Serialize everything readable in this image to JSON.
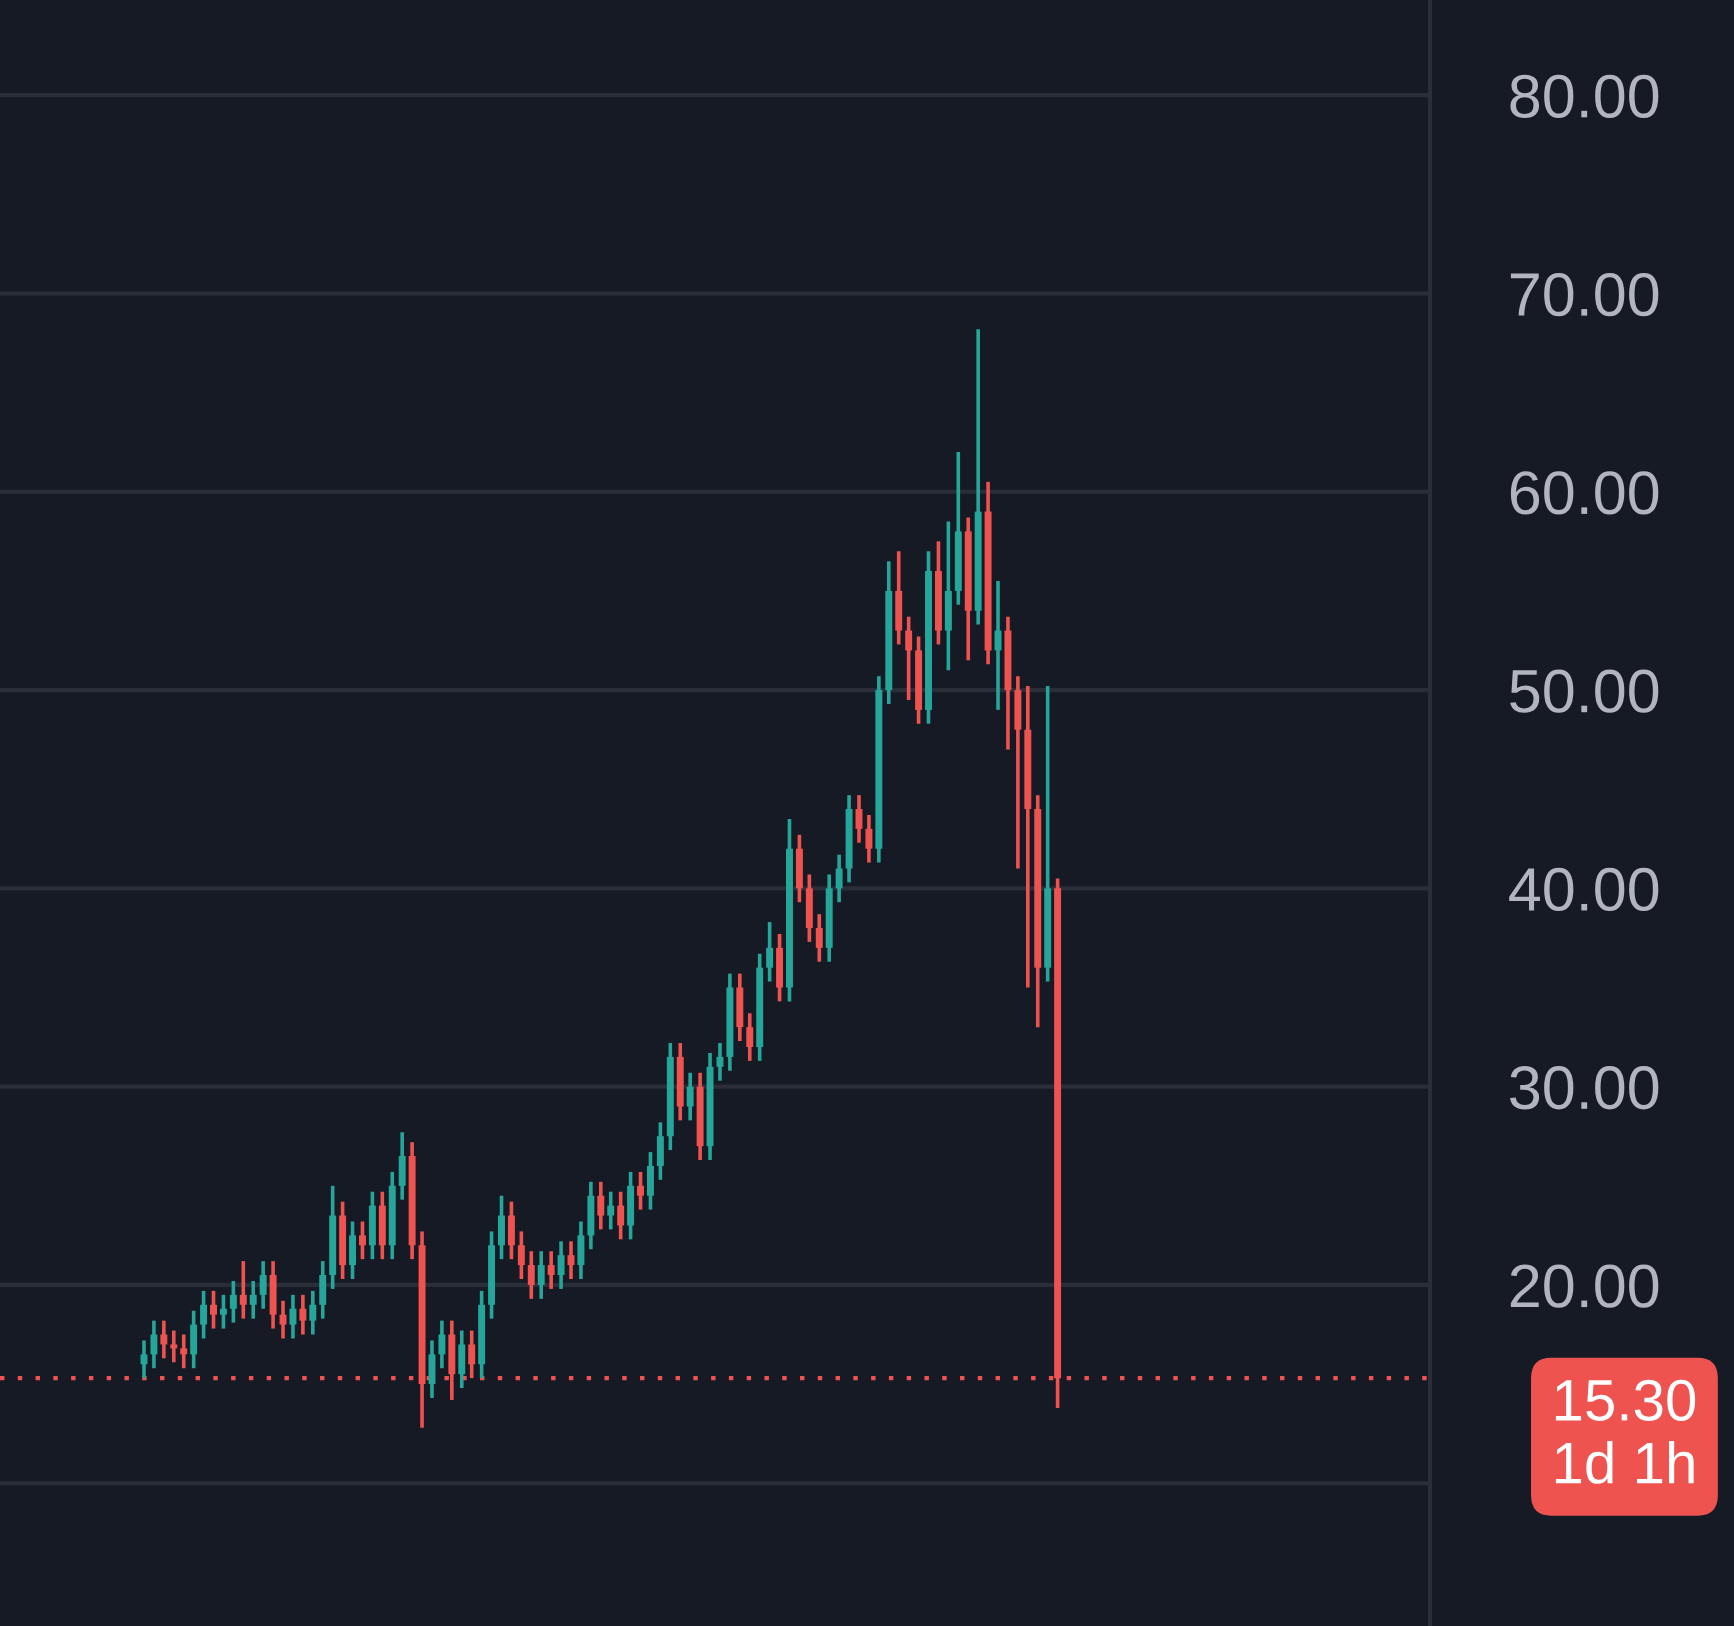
{
  "chart_data": {
    "type": "candlestick",
    "categories": [
      null,
      null,
      null,
      null,
      null,
      null,
      null,
      null,
      null,
      null,
      null,
      null,
      null,
      null,
      null,
      null,
      null,
      null,
      null,
      null,
      null,
      null,
      null,
      null,
      null,
      null,
      null,
      null,
      null,
      null,
      null,
      null,
      null,
      null,
      null,
      null,
      null,
      null,
      null,
      null,
      null,
      null,
      null,
      null,
      null,
      null,
      null,
      null,
      null,
      null,
      null,
      null,
      null,
      null,
      null,
      null,
      null,
      null,
      null,
      null,
      null,
      null,
      null,
      null,
      null,
      null,
      null,
      null,
      null,
      null,
      null,
      null,
      null,
      null,
      null,
      null,
      null,
      null,
      null,
      null,
      null,
      null,
      null,
      null,
      null,
      null,
      null,
      null,
      null,
      null,
      null,
      null,
      null,
      null,
      null,
      null,
      null,
      null,
      null,
      null,
      null,
      null,
      null,
      null,
      null,
      null,
      null,
      null,
      null,
      null,
      null,
      null,
      null,
      null,
      null,
      null,
      null,
      null,
      null,
      null,
      null,
      null,
      null,
      null,
      null,
      null,
      null,
      null,
      null,
      null,
      null,
      null,
      null,
      null,
      null,
      null,
      null,
      null,
      null,
      null,
      null,
      null,
      null,
      null
    ],
    "ohlc": [
      null,
      null,
      null,
      null,
      null,
      null,
      null,
      null,
      null,
      null,
      null,
      null,
      null,
      null,
      [
        16,
        17.2,
        15.3,
        16.5
      ],
      [
        16.5,
        18.2,
        15.8,
        17.5
      ],
      [
        17.5,
        18.2,
        16.3,
        17
      ],
      [
        17,
        17.7,
        16.1,
        16.8
      ],
      [
        16.8,
        17.5,
        15.8,
        16.5
      ],
      [
        16.5,
        18.7,
        15.8,
        18
      ],
      [
        18,
        19.7,
        17.3,
        19
      ],
      [
        19,
        19.7,
        17.8,
        18.5
      ],
      [
        18.5,
        19.5,
        17.8,
        18.8
      ],
      [
        18.8,
        20.2,
        18.1,
        19.5
      ],
      [
        19.5,
        21.2,
        18.3,
        19
      ],
      [
        19,
        20.2,
        18.3,
        19.5
      ],
      [
        19.5,
        21.2,
        18.8,
        20.5
      ],
      [
        20.5,
        21.2,
        17.8,
        18.5
      ],
      [
        18.5,
        19.2,
        17.3,
        18
      ],
      [
        18,
        19.5,
        17.3,
        18.8
      ],
      [
        18.8,
        19.5,
        17.5,
        18.2
      ],
      [
        18.2,
        19.7,
        17.5,
        19
      ],
      [
        19,
        21.2,
        18.3,
        20.5
      ],
      [
        20.5,
        25,
        19.8,
        23.5
      ],
      [
        23.5,
        24.2,
        20.3,
        21
      ],
      [
        21,
        23.2,
        20.3,
        22.5
      ],
      [
        22.5,
        23.2,
        21.3,
        22
      ],
      [
        22,
        24.7,
        21.3,
        24
      ],
      [
        24,
        24.7,
        21.3,
        22
      ],
      [
        22,
        25.7,
        21.3,
        25
      ],
      [
        25,
        27.7,
        24.3,
        26.5
      ],
      [
        26.5,
        27.2,
        21.3,
        22
      ],
      [
        22,
        22.7,
        12.8,
        15
      ],
      [
        15,
        17.2,
        14.3,
        16.5
      ],
      [
        16.5,
        18.2,
        15.8,
        17.5
      ],
      [
        17.5,
        18.2,
        14.2,
        15.5
      ],
      [
        15.5,
        17.7,
        14.8,
        17
      ],
      [
        17,
        17.7,
        15.3,
        16
      ],
      [
        16,
        19.7,
        15.3,
        19
      ],
      [
        19,
        22.7,
        18.3,
        22
      ],
      [
        22,
        24.5,
        21.3,
        23.5
      ],
      [
        23.5,
        24.2,
        21.3,
        22
      ],
      [
        22,
        22.7,
        20.3,
        21
      ],
      [
        21,
        21.7,
        19.3,
        20
      ],
      [
        20,
        21.7,
        19.3,
        21
      ],
      [
        21,
        21.7,
        19.8,
        20.5
      ],
      [
        20.5,
        22.2,
        19.8,
        21.5
      ],
      [
        21.5,
        22.2,
        20.3,
        21
      ],
      [
        21,
        23.2,
        20.3,
        22.5
      ],
      [
        22.5,
        25.2,
        21.8,
        24.5
      ],
      [
        24.5,
        25.2,
        22.8,
        23.5
      ],
      [
        23.5,
        24.7,
        22.8,
        24
      ],
      [
        24,
        24.7,
        22.3,
        23
      ],
      [
        23,
        25.7,
        22.3,
        25
      ],
      [
        25,
        25.7,
        23.8,
        24.5
      ],
      [
        24.5,
        26.7,
        23.8,
        26
      ],
      [
        26,
        28.2,
        25.3,
        27.5
      ],
      [
        27.5,
        32.2,
        26.8,
        31.5
      ],
      [
        31.5,
        32.2,
        28.3,
        29
      ],
      [
        29,
        30.7,
        28.3,
        30
      ],
      [
        30,
        30.7,
        26.3,
        27
      ],
      [
        27,
        31.7,
        26.3,
        31
      ],
      [
        31,
        32.2,
        30.3,
        31.5
      ],
      [
        31.5,
        35.7,
        30.8,
        35
      ],
      [
        35,
        35.7,
        32.3,
        33
      ],
      [
        33,
        33.7,
        31.3,
        32
      ],
      [
        32,
        36.7,
        31.3,
        36
      ],
      [
        36,
        38.3,
        35.3,
        37
      ],
      [
        37,
        37.7,
        34.3,
        35
      ],
      [
        35,
        43.5,
        34.3,
        42
      ],
      [
        42,
        42.7,
        39.3,
        40
      ],
      [
        40,
        40.7,
        37.3,
        38
      ],
      [
        38,
        38.7,
        36.3,
        37
      ],
      [
        37,
        40.7,
        36.3,
        40
      ],
      [
        40,
        41.7,
        39.3,
        41
      ],
      [
        41,
        44.7,
        40.3,
        44
      ],
      [
        44,
        44.7,
        42.3,
        43
      ],
      [
        43,
        43.7,
        41.3,
        42
      ],
      [
        42,
        50.7,
        41.3,
        50
      ],
      [
        50,
        56.5,
        49.3,
        55
      ],
      [
        55,
        57,
        52.3,
        53
      ],
      [
        53,
        53.7,
        49.5,
        52
      ],
      [
        52,
        52.7,
        48.3,
        49
      ],
      [
        49,
        57,
        48.3,
        56
      ],
      [
        56,
        57.5,
        52.3,
        53
      ],
      [
        53,
        58.5,
        51,
        55
      ],
      [
        55,
        62,
        54.3,
        58
      ],
      [
        58,
        58.7,
        51.5,
        54
      ],
      [
        54,
        68.2,
        53.3,
        59
      ],
      [
        59,
        60.5,
        51.3,
        52
      ],
      [
        52,
        55.5,
        49,
        53
      ],
      [
        53,
        53.7,
        47,
        50
      ],
      [
        50,
        50.7,
        41,
        48
      ],
      [
        48,
        50.2,
        35,
        44
      ],
      [
        44,
        44.7,
        33,
        36
      ],
      [
        36,
        50.2,
        35.3,
        40
      ],
      [
        40,
        40.5,
        13.8,
        15.3
      ],
      null,
      null,
      null,
      null,
      null,
      null,
      null,
      null,
      null,
      null,
      null,
      null,
      null,
      null,
      null,
      null,
      null,
      null,
      null,
      null,
      null,
      null,
      null,
      null,
      null,
      null,
      null,
      null,
      null,
      null,
      null,
      null,
      null,
      null,
      null,
      null,
      null
    ],
    "colors": [
      null,
      null,
      null,
      null,
      null,
      null,
      null,
      null,
      null,
      null,
      null,
      null,
      null,
      null,
      "#26a69a",
      "#26a69a",
      "#ef5350",
      "#ef5350",
      "#ef5350",
      "#26a69a",
      "#26a69a",
      "#ef5350",
      "#26a69a",
      "#26a69a",
      "#ef5350",
      "#26a69a",
      "#26a69a",
      "#ef5350",
      "#ef5350",
      "#26a69a",
      "#ef5350",
      "#26a69a",
      "#26a69a",
      "#26a69a",
      "#ef5350",
      "#26a69a",
      "#ef5350",
      "#26a69a",
      "#ef5350",
      "#26a69a",
      "#26a69a",
      "#ef5350",
      "#ef5350",
      "#26a69a",
      "#26a69a",
      "#ef5350",
      "#26a69a",
      "#ef5350",
      "#26a69a",
      "#26a69a",
      "#26a69a",
      "#ef5350",
      "#ef5350",
      "#ef5350",
      "#26a69a",
      "#ef5350",
      "#26a69a",
      "#ef5350",
      "#26a69a",
      "#26a69a",
      "#ef5350",
      "#26a69a",
      "#ef5350",
      "#26a69a",
      "#ef5350",
      "#26a69a",
      "#26a69a",
      "#26a69a",
      "#ef5350",
      "#26a69a",
      "#ef5350",
      "#26a69a",
      "#26a69a",
      "#26a69a",
      "#ef5350",
      "#ef5350",
      "#26a69a",
      "#26a69a",
      "#ef5350",
      "#26a69a",
      "#ef5350",
      "#ef5350",
      "#ef5350",
      "#26a69a",
      "#26a69a",
      "#26a69a",
      "#ef5350",
      "#ef5350",
      "#26a69a",
      "#26a69a",
      "#ef5350",
      "#ef5350",
      "#ef5350",
      "#26a69a",
      "#ef5350",
      "#26a69a",
      "#26a69a",
      "#ef5350",
      "#26a69a",
      "#ef5350",
      "#26a69a",
      "#ef5350",
      "#ef5350",
      "#ef5350",
      "#ef5350",
      "#26a69a",
      "#ef5350",
      null,
      null,
      null,
      null,
      null,
      null,
      null,
      null,
      null,
      null,
      null,
      null,
      null,
      null,
      null,
      null,
      null,
      null,
      null,
      null,
      null,
      null,
      null,
      null,
      null,
      null,
      null,
      null,
      null,
      null,
      null,
      null,
      null,
      null,
      null,
      null,
      null
    ],
    "ylim": [
      2.8,
      84.8
    ],
    "yticks": [
      {
        "value": 10,
        "label": null
      },
      {
        "value": 20,
        "label": "20.00"
      },
      {
        "value": 30,
        "label": "30.00"
      },
      {
        "value": 40,
        "label": "40.00"
      },
      {
        "value": 50,
        "label": "50.00"
      },
      {
        "value": 60,
        "label": "60.00"
      },
      {
        "value": 70,
        "label": "70.00"
      },
      {
        "value": 80,
        "label": "80.00"
      }
    ],
    "grid": "y",
    "ref_lines": [
      {
        "axis": "y",
        "value": 15.3,
        "label": "15.30\n1d 1h",
        "color": "#ef5350",
        "line_style": "dotted"
      }
    ]
  }
}
